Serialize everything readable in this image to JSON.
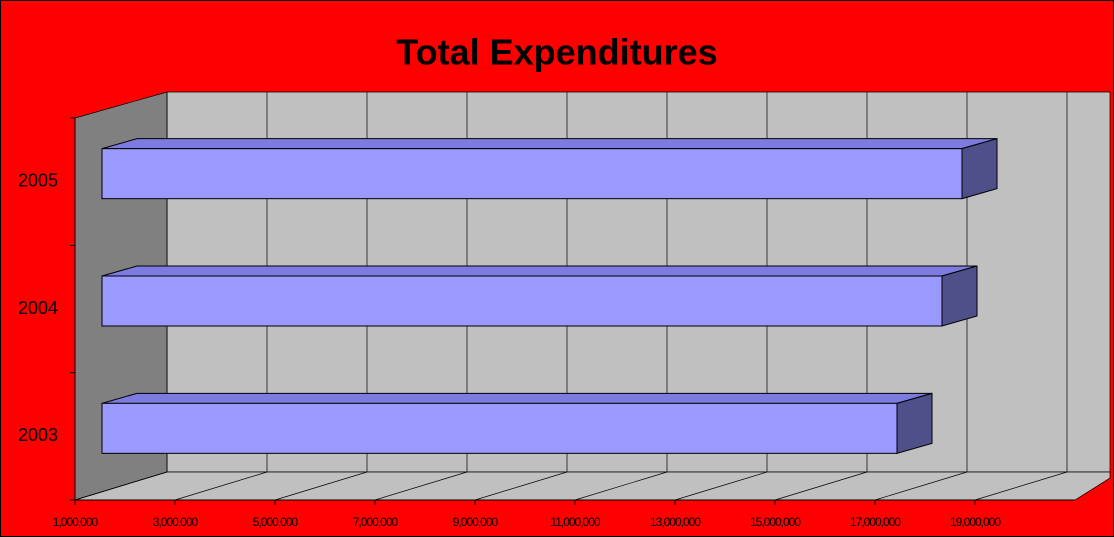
{
  "chart_data": {
    "type": "bar3d_horizontal",
    "title": "Total Expenditures",
    "categories": [
      "2003",
      "2004",
      "2005"
    ],
    "values": [
      16900000,
      17800000,
      18200000
    ],
    "color": "#9999ff",
    "xlim": [
      1000000,
      21000000
    ],
    "xticks": [
      {
        "value": 1000000,
        "label": "1,000,000"
      },
      {
        "value": 3000000,
        "label": "3,000,000"
      },
      {
        "value": 5000000,
        "label": "5,000,000"
      },
      {
        "value": 7000000,
        "label": "7,000,000"
      },
      {
        "value": 9000000,
        "label": "9,000,000"
      },
      {
        "value": 11000000,
        "label": "11,000,000"
      },
      {
        "value": 13000000,
        "label": "13,000,000"
      },
      {
        "value": 15000000,
        "label": "15,000,000"
      },
      {
        "value": 17000000,
        "label": "17,000,000"
      },
      {
        "value": 19000000,
        "label": "19,000,000"
      }
    ],
    "grid": true
  }
}
